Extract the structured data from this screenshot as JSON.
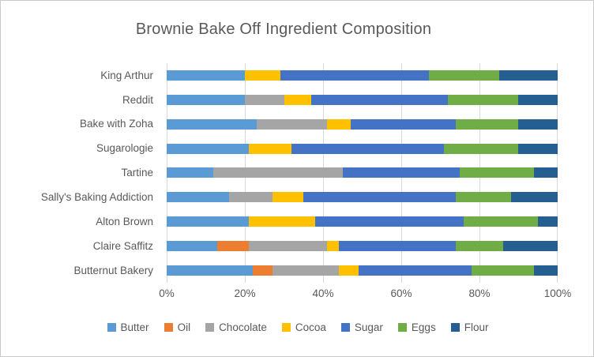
{
  "title": "Brownie Bake Off Ingredient Composition",
  "style": {
    "background": "#FFFFFF",
    "border_color": "#C9C9C9",
    "gridline_color": "#D9D9D9",
    "text_color": "#595959"
  },
  "chart_data": {
    "type": "bar",
    "orientation": "horizontal",
    "stacked": true,
    "units": "percent",
    "title": "Brownie Bake Off Ingredient Composition",
    "categories": [
      "King Arthur",
      "Reddit",
      "Bake with Zoha",
      "Sugarologie",
      "Tartine",
      "Sally's Baking Addiction",
      "Alton Brown",
      "Claire Saffitz",
      "Butternut Bakery"
    ],
    "series": [
      {
        "name": "Butter",
        "color": "#5B9BD5",
        "values": [
          20,
          20,
          23,
          21,
          12,
          16,
          21,
          13,
          22
        ]
      },
      {
        "name": "Oil",
        "color": "#ED7D31",
        "values": [
          0,
          0,
          0,
          0,
          0,
          0,
          0,
          8,
          5
        ]
      },
      {
        "name": "Chocolate",
        "color": "#A5A5A5",
        "values": [
          0,
          10,
          18,
          0,
          33,
          11,
          0,
          20,
          17
        ]
      },
      {
        "name": "Cocoa",
        "color": "#FFC000",
        "values": [
          9,
          7,
          6,
          11,
          0,
          8,
          17,
          3,
          5
        ]
      },
      {
        "name": "Sugar",
        "color": "#4472C4",
        "values": [
          38,
          35,
          27,
          39,
          30,
          39,
          38,
          30,
          29
        ]
      },
      {
        "name": "Eggs",
        "color": "#70AD47",
        "values": [
          18,
          18,
          16,
          19,
          19,
          14,
          19,
          12,
          16
        ]
      },
      {
        "name": "Flour",
        "color": "#255E91",
        "values": [
          15,
          10,
          10,
          10,
          6,
          12,
          5,
          14,
          6
        ]
      }
    ],
    "x_axis": {
      "tick_labels": [
        "0%",
        "20%",
        "40%",
        "60%",
        "80%",
        "100%"
      ],
      "tick_values": [
        0,
        20,
        40,
        60,
        80,
        100
      ],
      "range": [
        0,
        100
      ]
    },
    "grid": true,
    "legend_position": "bottom",
    "legend": [
      "Butter",
      "Oil",
      "Chocolate",
      "Cocoa",
      "Sugar",
      "Eggs",
      "Flour"
    ]
  }
}
